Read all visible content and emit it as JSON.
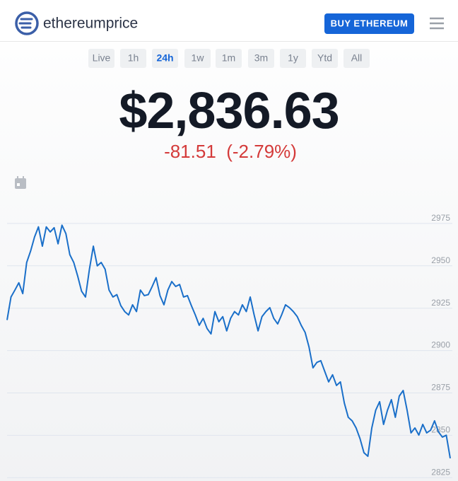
{
  "header": {
    "brand": "ethereumprice",
    "button": "BUY ETHEREUM"
  },
  "ranges": {
    "items": [
      "Live",
      "1h",
      "24h",
      "1w",
      "1m",
      "3m",
      "1y",
      "Ytd",
      "All"
    ],
    "active": "24h"
  },
  "price": "$2,836.63",
  "change": "-81.51  (-2.79%)",
  "chart_data": {
    "type": "line",
    "series": [
      {
        "color": "#1a6fc9",
        "values": [
          2918,
          2931.6,
          2935.7,
          2940,
          2933.6,
          2952,
          2958.7,
          2967,
          2973,
          2961.6,
          2973,
          2970,
          2972.5,
          2963,
          2974,
          2969,
          2956.6,
          2952,
          2944,
          2935,
          2931.6,
          2948,
          2961.6,
          2950,
          2952,
          2948,
          2935.7,
          2931.6,
          2933,
          2926.5,
          2923,
          2921,
          2927,
          2923,
          2935.7,
          2932.4,
          2933,
          2937.8,
          2943,
          2932.4,
          2927,
          2935.7,
          2940.7,
          2937.8,
          2939,
          2931.6,
          2932.4,
          2926.5,
          2921,
          2914.9,
          2919,
          2913,
          2909.8,
          2923,
          2917,
          2920,
          2911.6,
          2919,
          2923,
          2921,
          2927,
          2923,
          2931.6,
          2921,
          2911.6,
          2920,
          2923,
          2925.3,
          2919,
          2915.7,
          2921,
          2927,
          2925.3,
          2923,
          2920,
          2914.9,
          2910.7,
          2902,
          2889.8,
          2893,
          2894,
          2887.7,
          2881.5,
          2885.7,
          2879.4,
          2881.5,
          2869,
          2860.6,
          2858.5,
          2854.3,
          2848,
          2839.7,
          2837.6,
          2854.3,
          2864.8,
          2869.8,
          2856.4,
          2864.8,
          2871,
          2860.6,
          2873.1,
          2876.4,
          2864.8,
          2851.4,
          2854.3,
          2850.1,
          2856.4,
          2851.4,
          2853,
          2858.5,
          2852,
          2848.9,
          2850,
          2836.4
        ]
      }
    ],
    "ylim": [
      2823,
      2990
    ],
    "yticks": [
      2825,
      2850,
      2875,
      2900,
      2925,
      2950,
      2975
    ],
    "grid": true
  }
}
